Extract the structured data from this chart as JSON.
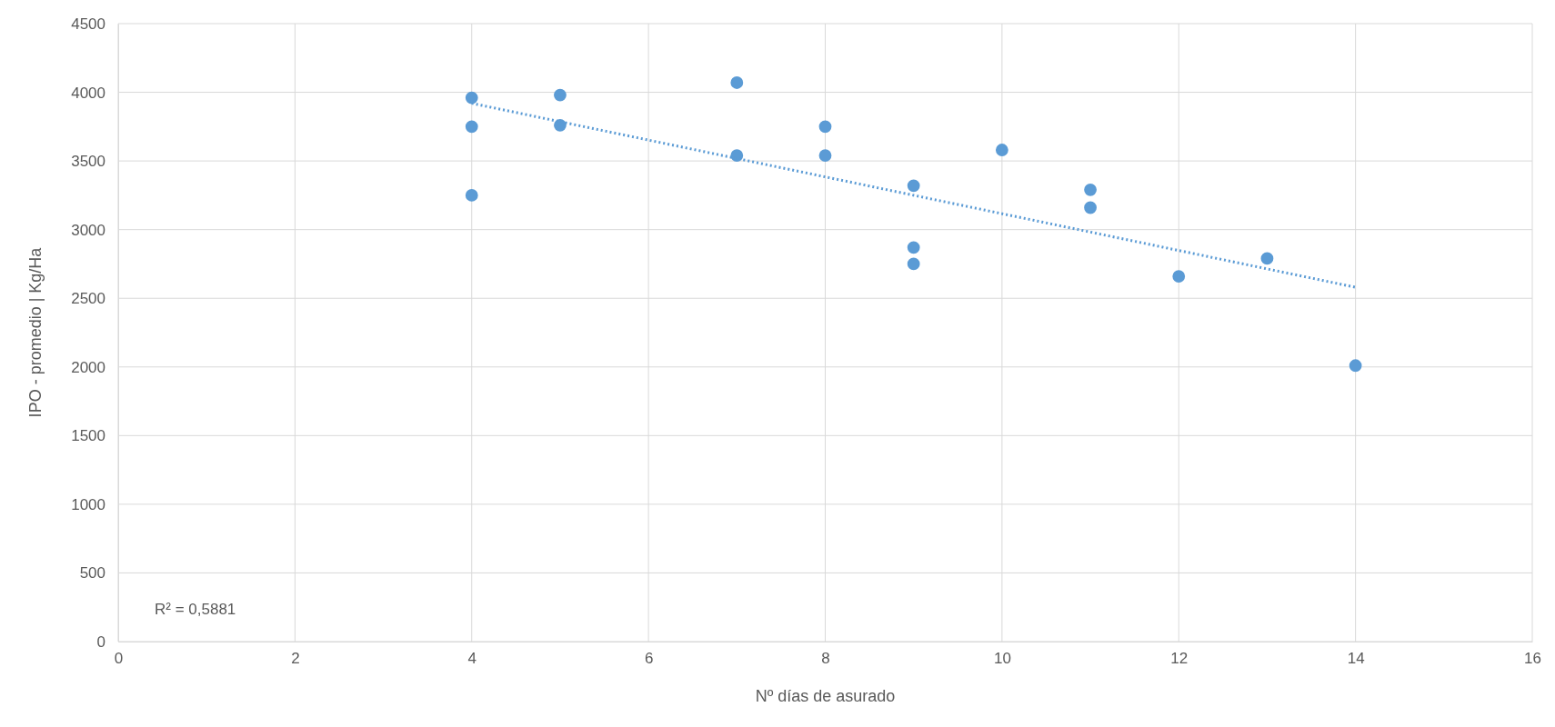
{
  "chart_data": {
    "type": "scatter",
    "xlabel": "Nº días de asurado",
    "ylabel": "IPO - promedio | Kg/Ha",
    "xlim": [
      0,
      16
    ],
    "xticks": [
      0,
      2,
      4,
      6,
      8,
      10,
      12,
      14,
      16
    ],
    "ylim": [
      0,
      4500
    ],
    "yticks": [
      0,
      500,
      1000,
      1500,
      2000,
      2500,
      3000,
      3500,
      4000,
      4500
    ],
    "grid": true,
    "marker": "circle",
    "series": [
      {
        "type": "scatter",
        "color": "#5b9bd5",
        "x": [
          4,
          4,
          4,
          5,
          5,
          7,
          7,
          8,
          8,
          9,
          9,
          9,
          10,
          11,
          11,
          12,
          13,
          14
        ],
        "values": [
          3960,
          3750,
          3250,
          3980,
          3760,
          4070,
          3540,
          3750,
          3540,
          3320,
          2870,
          2750,
          3580,
          3290,
          3160,
          2660,
          2790,
          2010
        ]
      },
      {
        "type": "line",
        "color": "#5b9bd5",
        "line_style": "dotted",
        "marker": "none",
        "x": [
          4,
          14
        ],
        "values": [
          3920,
          2580
        ]
      }
    ],
    "annotations": [
      {
        "text": "R² = 0,5881"
      }
    ]
  }
}
